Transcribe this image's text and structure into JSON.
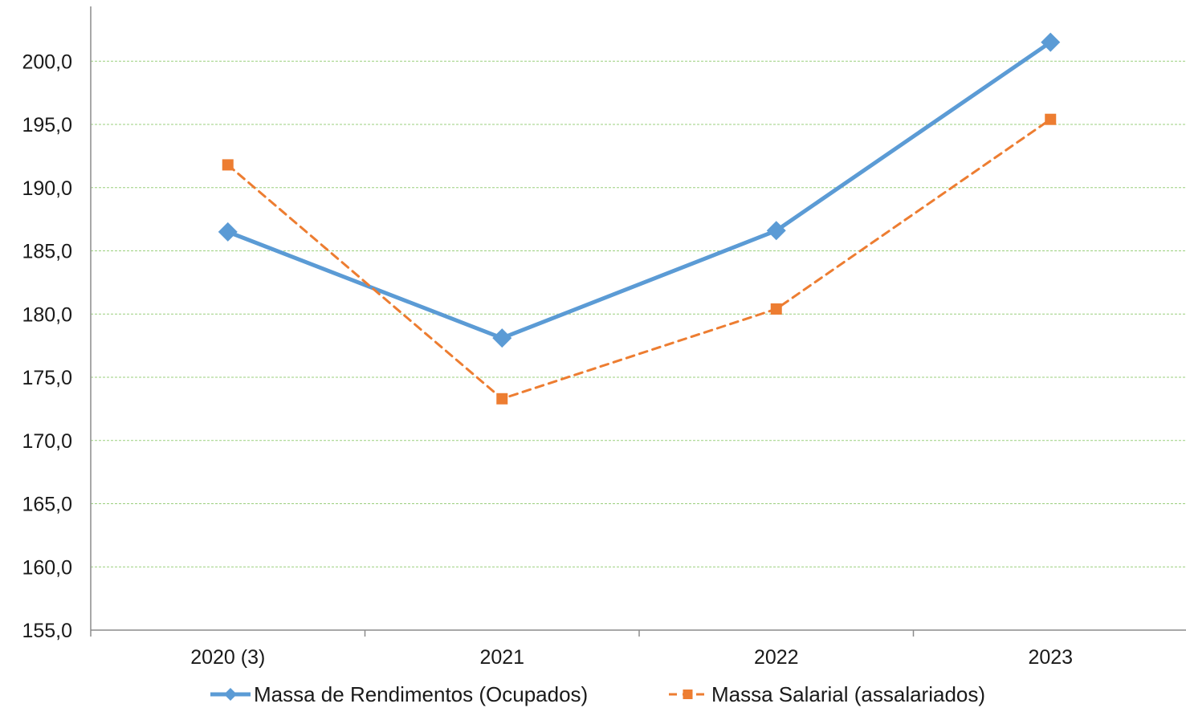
{
  "chart_data": {
    "type": "line",
    "title": "",
    "xlabel": "",
    "ylabel": "",
    "categories": [
      "2020 (3)",
      "2021",
      "2022",
      "2023"
    ],
    "ylim": [
      155,
      200
    ],
    "y_ticks": [
      "155,0",
      "160,0",
      "165,0",
      "170,0",
      "175,0",
      "180,0",
      "185,0",
      "190,0",
      "195,0",
      "200,0"
    ],
    "grid": true,
    "legend_position": "bottom",
    "series": [
      {
        "name": "Massa de Rendimentos (Ocupados)",
        "values": [
          186.5,
          178.1,
          186.6,
          201.5
        ],
        "color": "#5b9bd5",
        "line_style": "solid",
        "marker": "diamond"
      },
      {
        "name": "Massa Salarial (assalariados)",
        "values": [
          191.8,
          173.3,
          180.4,
          195.4
        ],
        "color": "#ed7d31",
        "line_style": "dashed",
        "marker": "square"
      }
    ]
  }
}
